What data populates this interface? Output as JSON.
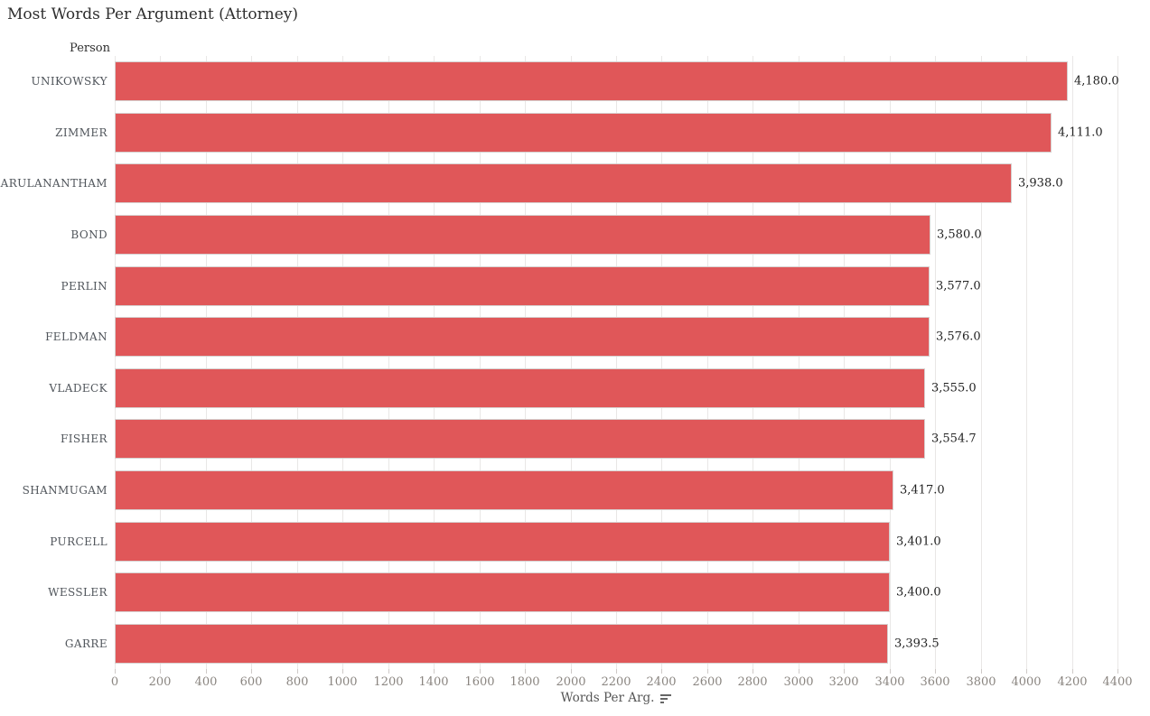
{
  "title": "Most Words Per Argument (Attorney)",
  "row_header": "Person",
  "x_axis": {
    "label": "Words Per Arg.",
    "tick_labels": [
      "0",
      "200",
      "400",
      "600",
      "800",
      "1000",
      "1200",
      "1400",
      "1600",
      "1800",
      "2000",
      "2200",
      "2400",
      "2600",
      "2800",
      "3000",
      "3200",
      "3400",
      "3600",
      "3800",
      "4000",
      "4200",
      "4400"
    ],
    "sort_icon": "sort-descending-icon"
  },
  "colors": {
    "bar": "#e05759",
    "bar_border": "#d6d0cf",
    "gridline": "#e9e7e6",
    "tick_mark": "#cfcac8",
    "title_text": "#2f2f2f",
    "category_text": "#50555b",
    "value_text": "#222222",
    "tick_label_text": "#8a8580",
    "axis_label_text": "#555555",
    "icon": "#666666"
  },
  "chart_data": {
    "type": "bar",
    "orientation": "horizontal",
    "title": "Most Words Per Argument (Attorney)",
    "xlabel": "Words Per Arg.",
    "ylabel": "Person",
    "xlim": [
      0,
      4400
    ],
    "x_tick_step": 200,
    "grid": true,
    "legend": false,
    "sort": "descending",
    "categories": [
      "UNIKOWSKY",
      "ZIMMER",
      "ARULANANTHAM",
      "BOND",
      "PERLIN",
      "FELDMAN",
      "VLADECK",
      "FISHER",
      "SHANMUGAM",
      "PURCELL",
      "WESSLER",
      "GARRE"
    ],
    "values": [
      4180.0,
      4111.0,
      3938.0,
      3580.0,
      3577.0,
      3576.0,
      3555.0,
      3554.7,
      3417.0,
      3401.0,
      3400.0,
      3393.5
    ],
    "value_labels": [
      "4,180.0",
      "4,111.0",
      "3,938.0",
      "3,580.0",
      "3,577.0",
      "3,576.0",
      "3,555.0",
      "3,554.7",
      "3,417.0",
      "3,401.0",
      "3,400.0",
      "3,393.5"
    ],
    "bar_color": "#e05759"
  }
}
